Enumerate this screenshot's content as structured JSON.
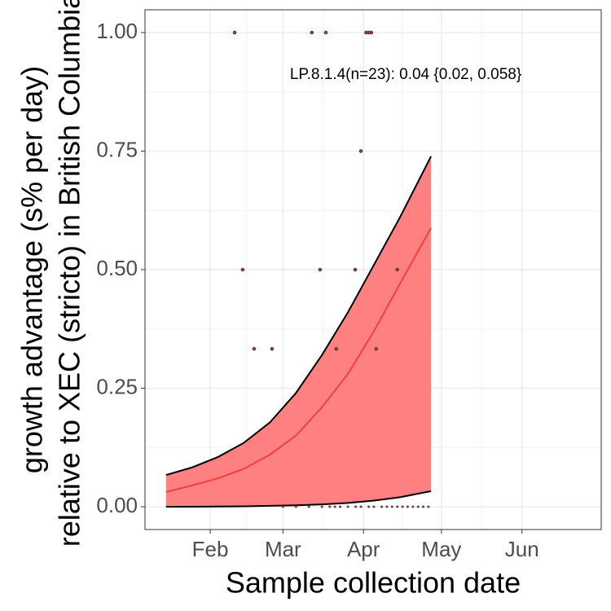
{
  "chart_data": {
    "type": "ribbon",
    "annotation": "LP.8.1.4(n=23): 0.04 {0.02, 0.058}",
    "x_label": "Sample collection date",
    "y_label": [
      "growth advantage (s% per day)",
      "relative to XEC (stricto) in British Columbia"
    ],
    "xlim": [
      6.9,
      182.5
    ],
    "ylim": [
      -0.048,
      1.048
    ],
    "xticks": [
      {
        "value": 32,
        "label": "Feb"
      },
      {
        "value": 60,
        "label": "Mar"
      },
      {
        "value": 91,
        "label": "Apr"
      },
      {
        "value": 121,
        "label": "May"
      },
      {
        "value": 152,
        "label": "Jun"
      }
    ],
    "yticks": [
      {
        "value": 0,
        "label": "0.00"
      },
      {
        "value": 0.25,
        "label": "0.25"
      },
      {
        "value": 0.5,
        "label": "0.50"
      },
      {
        "value": 0.75,
        "label": "0.75"
      },
      {
        "value": 1,
        "label": "1.00"
      }
    ],
    "grid": true,
    "ribbon": {
      "x": [
        15,
        25,
        35,
        45,
        55,
        65,
        75,
        85,
        95,
        105,
        117
      ],
      "fit": [
        0.031,
        0.045,
        0.06,
        0.08,
        0.11,
        0.15,
        0.21,
        0.28,
        0.37,
        0.47,
        0.588
      ],
      "upper": [
        0.067,
        0.083,
        0.105,
        0.135,
        0.178,
        0.24,
        0.32,
        0.41,
        0.51,
        0.61,
        0.739
      ],
      "lower": [
        0,
        0,
        0.0005,
        0.001,
        0.002,
        0.003,
        0.005,
        0.008,
        0.013,
        0.02,
        0.033
      ],
      "fill_color": "#ff8080",
      "fit_color": "#f0403a",
      "edge_color": "#000000"
    },
    "points": {
      "x": [
        41.4,
        71.1,
        76.5,
        92,
        93,
        94,
        90,
        44.5,
        74.3,
        87.8,
        104,
        48.9,
        55.8,
        80.5,
        95.9,
        60,
        65,
        70,
        75,
        78,
        80,
        82,
        85,
        88,
        90,
        93,
        95,
        98,
        100,
        102,
        104,
        106,
        108,
        110,
        112,
        114,
        116
      ],
      "y": [
        1,
        1,
        1,
        1,
        1,
        1,
        0.75,
        0.5,
        0.5,
        0.5,
        0.5,
        0.333,
        0.333,
        0.333,
        0.333,
        0,
        0,
        0,
        0,
        0,
        0,
        0,
        0,
        0,
        0,
        0,
        0,
        0,
        0,
        0,
        0,
        0,
        0,
        0,
        0,
        0,
        0
      ],
      "color": "#8b3a3a"
    }
  }
}
